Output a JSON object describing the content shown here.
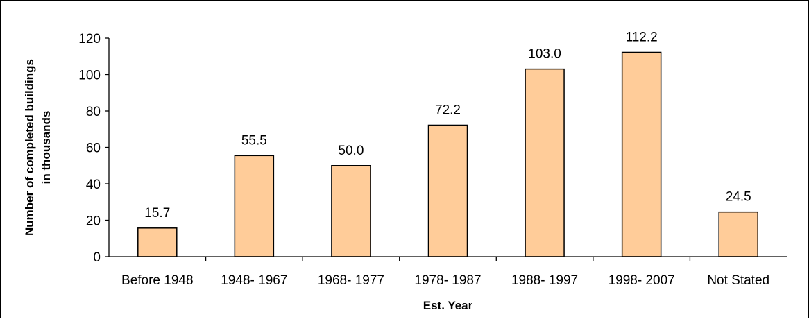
{
  "chart_data": {
    "type": "bar",
    "title": "",
    "xlabel": "Est. Year",
    "ylabel_lines": [
      "Number of completed buildings",
      "in thousands"
    ],
    "categories": [
      "Before 1948",
      "1948- 1967",
      "1968- 1977",
      "1978- 1987",
      "1988- 1997",
      "1998- 2007",
      "Not Stated"
    ],
    "values": [
      15.7,
      55.5,
      50.0,
      72.2,
      103.0,
      112.2,
      24.5
    ],
    "value_labels": [
      "15.7",
      "55.5",
      "50.0",
      "72.2",
      "103.0",
      "112.2",
      "24.5"
    ],
    "ylim": [
      0,
      120
    ],
    "yticks": [
      0,
      20,
      40,
      60,
      80,
      100,
      120
    ],
    "grid": false,
    "legend": "none",
    "colors": {
      "bar_fill": "#FFCC99",
      "bar_stroke": "#000000",
      "axis": "#000000"
    }
  }
}
